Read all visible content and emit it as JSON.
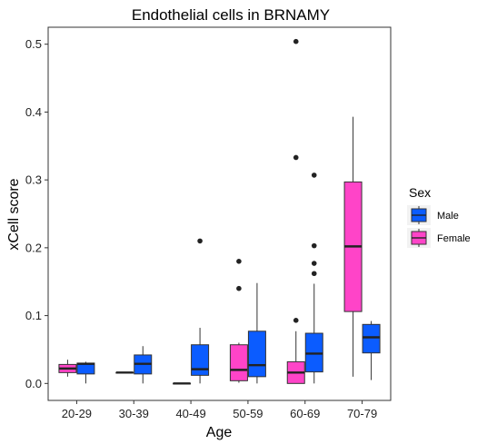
{
  "chart_data": {
    "type": "boxplot",
    "title": "Endothelial cells in BRNAMY",
    "xlabel": "Age",
    "ylabel": "xCell score",
    "ylim": [
      -0.025,
      0.525
    ],
    "yticks": [
      0.0,
      0.1,
      0.2,
      0.3,
      0.4,
      0.5
    ],
    "ytick_labels": [
      "0.0",
      "0.1",
      "0.2",
      "0.3",
      "0.4",
      "0.5"
    ],
    "categories": [
      "20-29",
      "30-39",
      "40-49",
      "50-59",
      "60-69",
      "70-79"
    ],
    "grid": false,
    "legend": {
      "title": "Sex",
      "position": "right",
      "entries": [
        {
          "label": "Male",
          "color": "#0b5cff"
        },
        {
          "label": "Female",
          "color": "#ff44c8"
        }
      ]
    },
    "series": [
      {
        "name": "Female",
        "color": "#ff44c8",
        "boxes": [
          {
            "category": "20-29",
            "whisker_low": 0.01,
            "q1": 0.016,
            "median": 0.022,
            "q3": 0.028,
            "whisker_high": 0.035,
            "outliers": []
          },
          {
            "category": "30-39",
            "whisker_low": 0.016,
            "q1": 0.016,
            "median": 0.016,
            "q3": 0.016,
            "whisker_high": 0.016,
            "outliers": []
          },
          {
            "category": "40-49",
            "whisker_low": 0.0,
            "q1": 0.0,
            "median": 0.0,
            "q3": 0.0,
            "whisker_high": 0.0,
            "outliers": []
          },
          {
            "category": "50-59",
            "whisker_low": 0.001,
            "q1": 0.004,
            "median": 0.02,
            "q3": 0.057,
            "whisker_high": 0.06,
            "outliers": [
              0.14,
              0.18
            ]
          },
          {
            "category": "60-69",
            "whisker_low": 0.0,
            "q1": 0.0,
            "median": 0.016,
            "q3": 0.032,
            "whisker_high": 0.077,
            "outliers": [
              0.093,
              0.333,
              0.504
            ]
          },
          {
            "category": "70-79",
            "whisker_low": 0.01,
            "q1": 0.106,
            "median": 0.202,
            "q3": 0.297,
            "whisker_high": 0.393,
            "outliers": []
          }
        ]
      },
      {
        "name": "Male",
        "color": "#0b5cff",
        "boxes": [
          {
            "category": "20-29",
            "whisker_low": 0.0,
            "q1": 0.014,
            "median": 0.029,
            "q3": 0.03,
            "whisker_high": 0.032,
            "outliers": []
          },
          {
            "category": "30-39",
            "whisker_low": 0.0,
            "q1": 0.014,
            "median": 0.029,
            "q3": 0.042,
            "whisker_high": 0.055,
            "outliers": []
          },
          {
            "category": "40-49",
            "whisker_low": 0.0,
            "q1": 0.012,
            "median": 0.021,
            "q3": 0.057,
            "whisker_high": 0.082,
            "outliers": [
              0.21
            ]
          },
          {
            "category": "50-59",
            "whisker_low": 0.0,
            "q1": 0.01,
            "median": 0.027,
            "q3": 0.077,
            "whisker_high": 0.148,
            "outliers": []
          },
          {
            "category": "60-69",
            "whisker_low": 0.0,
            "q1": 0.017,
            "median": 0.044,
            "q3": 0.074,
            "whisker_high": 0.147,
            "outliers": [
              0.162,
              0.177,
              0.203,
              0.307
            ]
          },
          {
            "category": "70-79",
            "whisker_low": 0.005,
            "q1": 0.045,
            "median": 0.068,
            "q3": 0.087,
            "whisker_high": 0.092,
            "outliers": []
          }
        ]
      }
    ]
  }
}
